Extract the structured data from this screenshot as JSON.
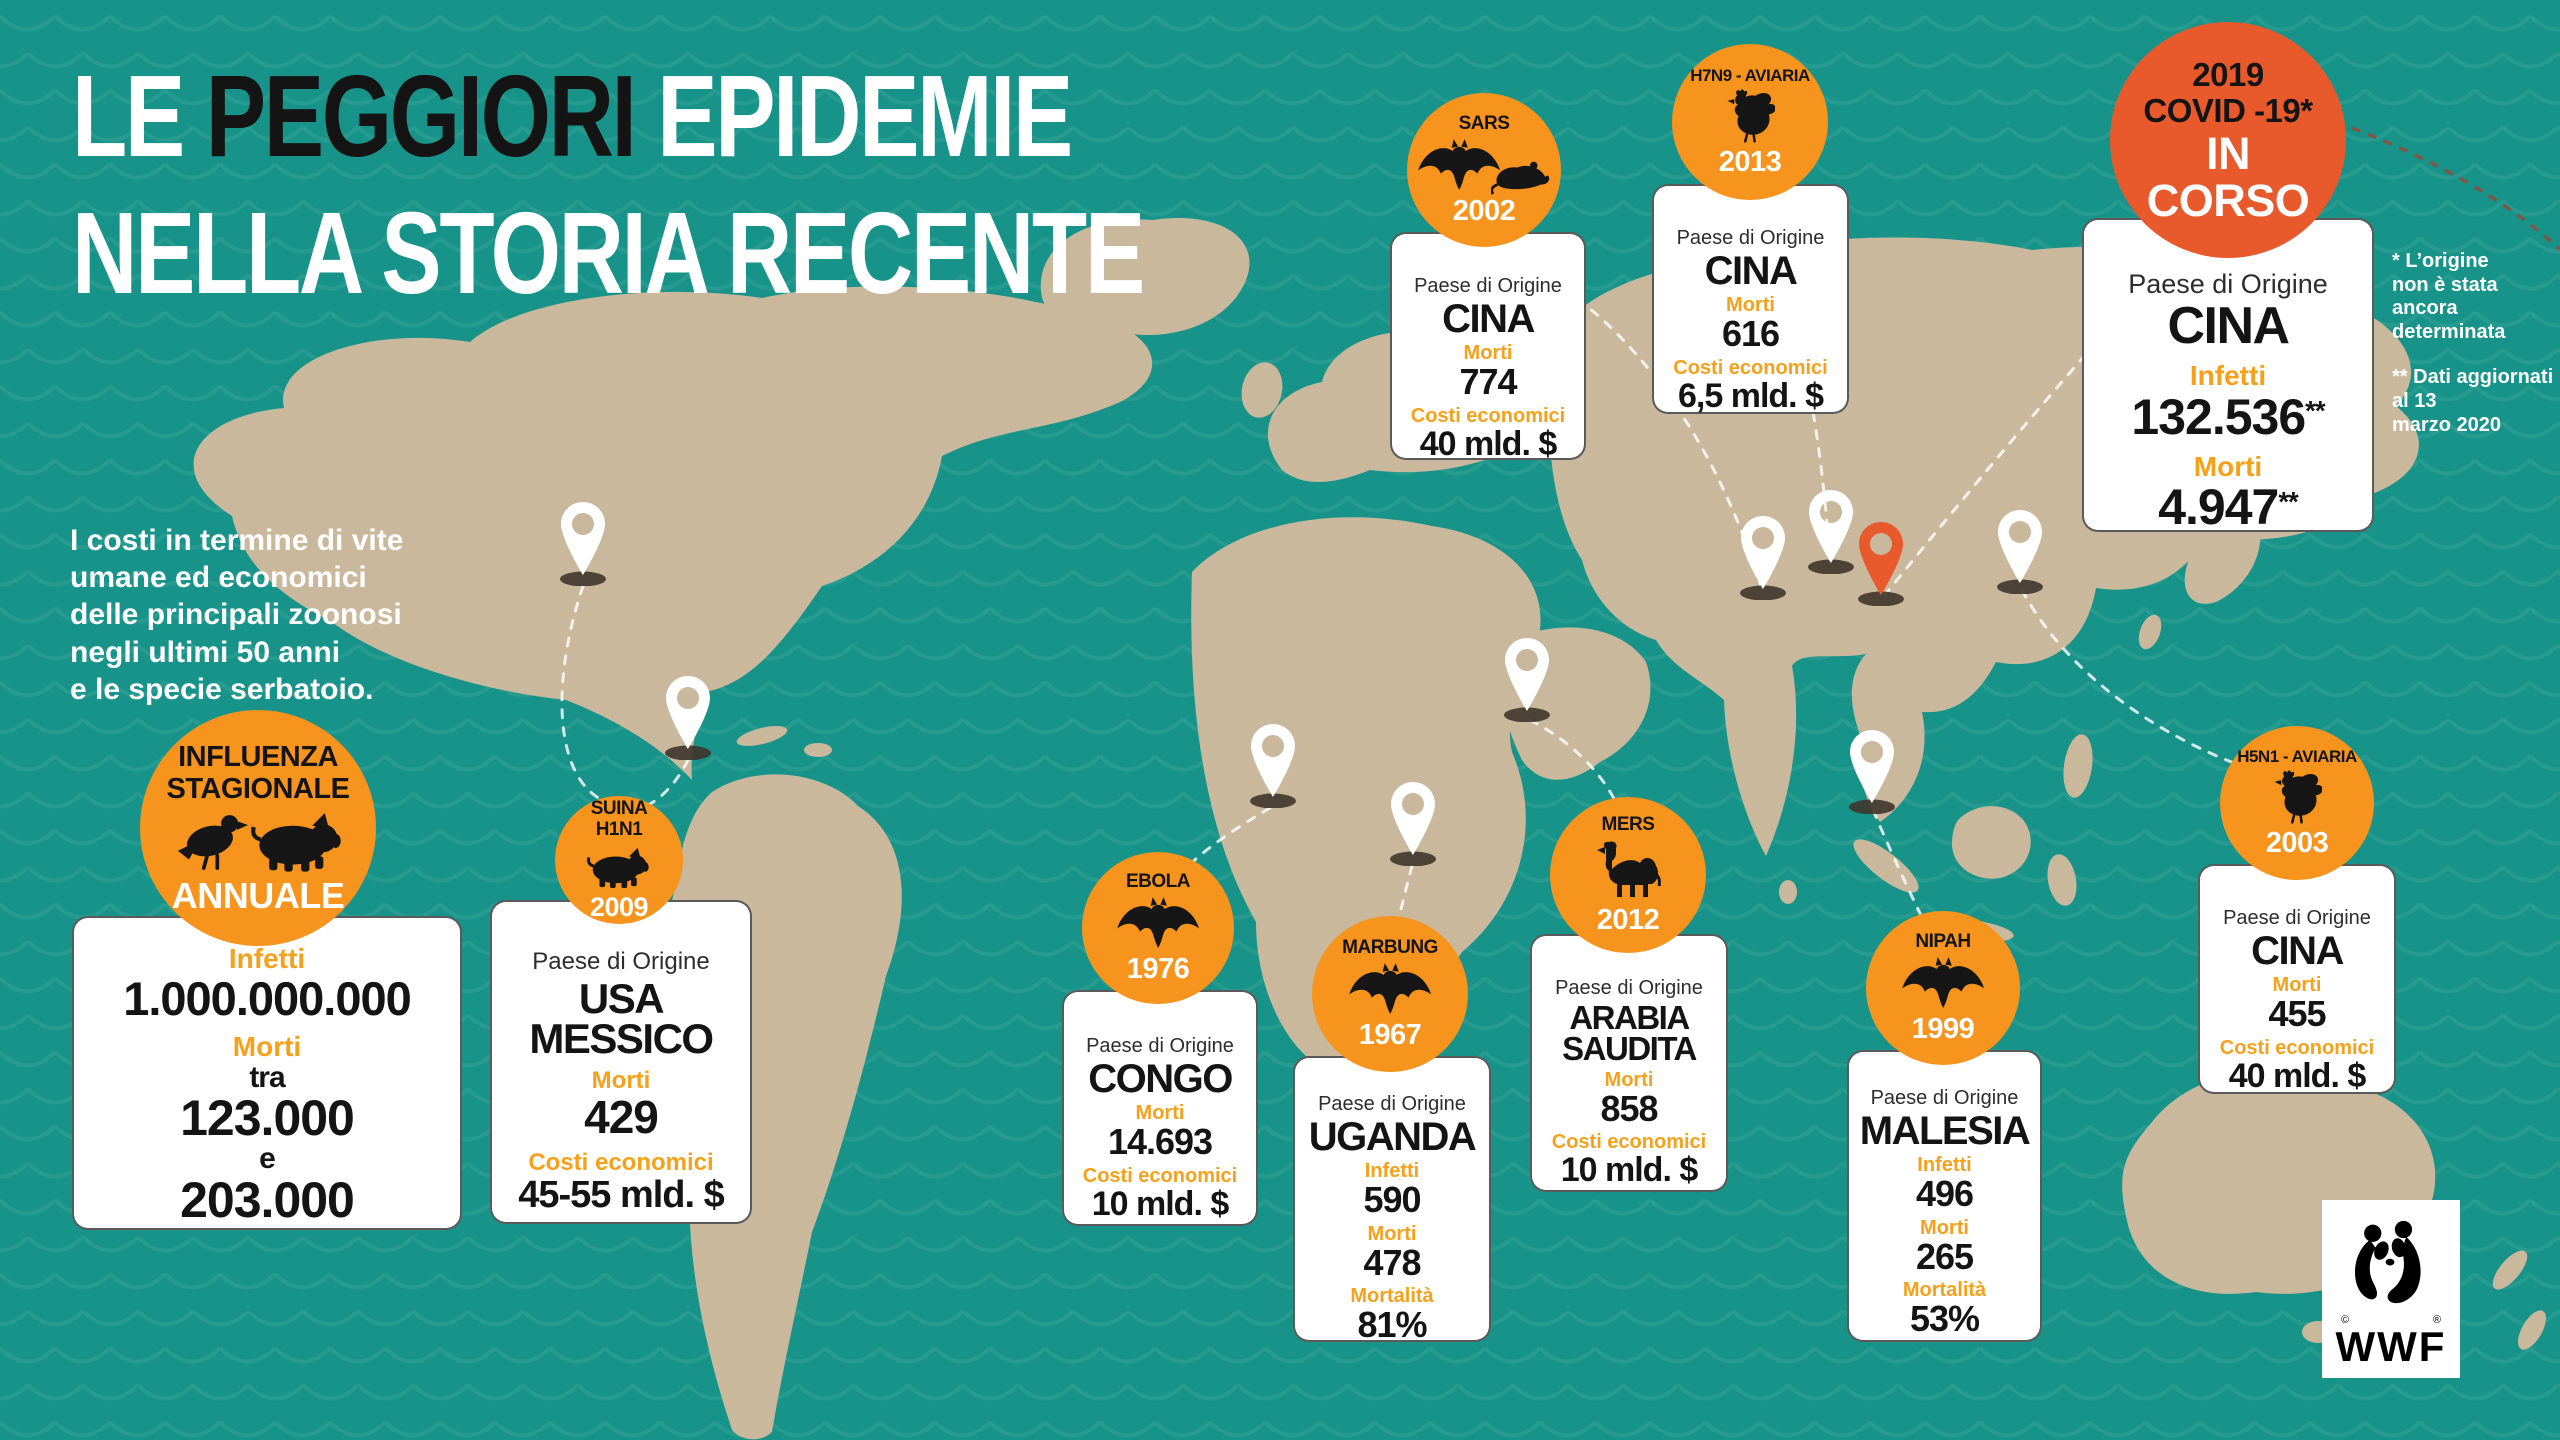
{
  "title": {
    "line1": [
      {
        "text": "LE ",
        "color": "#FFFFFF"
      },
      {
        "text": "PEGGIORI",
        "color": "#141414"
      },
      {
        "text": " EPIDEMIE",
        "color": "#FFFFFF"
      }
    ],
    "line2": "NELLA STORIA RECENTE"
  },
  "intro": "I costi in termine di vite\numane ed economici\ndelle principali zoonosi\nnegli ultimi 50 anni\ne le specie serbatoio.",
  "notes": {
    "note1": "* L’origine\nnon è stata ancora\ndeterminata",
    "note2": "** Dati aggiornati al 13\nmarzo 2020"
  },
  "logo": {
    "text": "WWF",
    "copyright": "©",
    "registered": "®"
  },
  "colors": {
    "background": "#17938A",
    "wave": "#3AA496",
    "land": "#C9B89C",
    "badge_orange": "#F6941D",
    "covid_orange": "#E8592B",
    "label_orange": "#F5A11C",
    "text_black": "#141414",
    "white": "#FFFFFF",
    "pin_shadow": "#3E352B"
  },
  "epidemics": [
    {
      "id": "influenza",
      "badge": {
        "top": [
          "INFLUENZA",
          "STAGIONALE"
        ],
        "animals": [
          "bird",
          "pig"
        ],
        "bottom": [
          "ANNUALE"
        ]
      },
      "rows": [
        {
          "label": "Infetti",
          "lines": [
            {
              "text": "1.000.000.000",
              "size": "xl"
            }
          ]
        },
        {
          "label": "Morti",
          "lines": [
            {
              "text": "tra",
              "size": "sm"
            },
            {
              "text": "123.000",
              "size": "lg"
            },
            {
              "text": "e",
              "size": "sm"
            },
            {
              "text": "203.000",
              "size": "lg"
            }
          ]
        }
      ]
    },
    {
      "id": "suina",
      "badge": {
        "top": [
          "SUINA",
          "H1N1"
        ],
        "animals": [
          "pig"
        ],
        "bottom": [
          "2009"
        ]
      },
      "origin": {
        "label": "Paese di Origine",
        "lines": [
          "USA",
          "MESSICO"
        ]
      },
      "rows": [
        {
          "label": "Morti",
          "lines": [
            {
              "text": "429",
              "size": "lg"
            }
          ]
        },
        {
          "label": "Costi economici",
          "lines": [
            {
              "text": "45-55 mld. $",
              "size": "md"
            }
          ]
        }
      ]
    },
    {
      "id": "sars",
      "badge": {
        "top": [
          "SARS"
        ],
        "animals": [
          "bat",
          "rat"
        ],
        "bottom": [
          "2002"
        ]
      },
      "origin": {
        "label": "Paese di Origine",
        "lines": [
          "CINA"
        ]
      },
      "rows": [
        {
          "label": "Morti",
          "lines": [
            {
              "text": "774",
              "size": "lg"
            }
          ]
        },
        {
          "label": "Costi economici",
          "lines": [
            {
              "text": "40 mld. $",
              "size": "md"
            }
          ]
        }
      ]
    },
    {
      "id": "h7n9",
      "badge": {
        "top": [
          "H7N9 - AVIARIA"
        ],
        "animals": [
          "rooster"
        ],
        "bottom": [
          "2013"
        ]
      },
      "origin": {
        "label": "Paese di Origine",
        "lines": [
          "CINA"
        ]
      },
      "rows": [
        {
          "label": "Morti",
          "lines": [
            {
              "text": "616",
              "size": "lg"
            }
          ]
        },
        {
          "label": "Costi economici",
          "lines": [
            {
              "text": "6,5 mld. $",
              "size": "md"
            }
          ]
        }
      ]
    },
    {
      "id": "covid",
      "badge": {
        "top": [
          "2019",
          "COVID -19*"
        ],
        "animals": [],
        "bottom": [
          "IN",
          "CORSO"
        ]
      },
      "origin": {
        "label": "Paese di Origine",
        "lines": [
          "CINA"
        ]
      },
      "rows": [
        {
          "label": "Infetti",
          "lines": [
            {
              "text": "132.536",
              "size": "lg"
            }
          ],
          "sup": "**"
        },
        {
          "label": "Morti",
          "lines": [
            {
              "text": "4.947",
              "size": "lg"
            }
          ],
          "sup": "**"
        }
      ]
    },
    {
      "id": "ebola",
      "badge": {
        "top": [
          "EBOLA"
        ],
        "animals": [
          "bat"
        ],
        "bottom": [
          "1976"
        ]
      },
      "origin": {
        "label": "Paese di Origine",
        "lines": [
          "CONGO"
        ]
      },
      "rows": [
        {
          "label": "Morti",
          "lines": [
            {
              "text": "14.693",
              "size": "lg"
            }
          ]
        },
        {
          "label": "Costi economici",
          "lines": [
            {
              "text": "10 mld. $",
              "size": "md"
            }
          ]
        }
      ]
    },
    {
      "id": "marbung",
      "badge": {
        "top": [
          "MARBUNG"
        ],
        "animals": [
          "bat"
        ],
        "bottom": [
          "1967"
        ]
      },
      "origin": {
        "label": "Paese di Origine",
        "lines": [
          "UGANDA"
        ]
      },
      "rows": [
        {
          "label": "Infetti",
          "lines": [
            {
              "text": "590",
              "size": "lg"
            }
          ]
        },
        {
          "label": "Morti",
          "lines": [
            {
              "text": "478",
              "size": "lg"
            }
          ]
        },
        {
          "label": "Mortalità",
          "lines": [
            {
              "text": "81%",
              "size": "lg"
            }
          ]
        }
      ]
    },
    {
      "id": "mers",
      "badge": {
        "top": [
          "MERS"
        ],
        "animals": [
          "camel"
        ],
        "bottom": [
          "2012"
        ]
      },
      "origin": {
        "label": "Paese di Origine",
        "lines": [
          "ARABIA",
          "SAUDITA"
        ]
      },
      "rows": [
        {
          "label": "Morti",
          "lines": [
            {
              "text": "858",
              "size": "lg"
            }
          ]
        },
        {
          "label": "Costi economici",
          "lines": [
            {
              "text": "10 mld. $",
              "size": "md"
            }
          ]
        }
      ]
    },
    {
      "id": "nipah",
      "badge": {
        "top": [
          "NIPAH"
        ],
        "animals": [
          "bat"
        ],
        "bottom": [
          "1999"
        ]
      },
      "origin": {
        "label": "Paese di Origine",
        "lines": [
          "MALESIA"
        ]
      },
      "rows": [
        {
          "label": "Infetti",
          "lines": [
            {
              "text": "496",
              "size": "lg"
            }
          ]
        },
        {
          "label": "Morti",
          "lines": [
            {
              "text": "265",
              "size": "lg"
            }
          ]
        },
        {
          "label": "Mortalità",
          "lines": [
            {
              "text": "53%",
              "size": "lg"
            }
          ]
        }
      ]
    },
    {
      "id": "h5n1",
      "badge": {
        "top": [
          "H5N1 - AVIARIA"
        ],
        "animals": [
          "rooster"
        ],
        "bottom": [
          "2003"
        ]
      },
      "origin": {
        "label": "Paese di Origine",
        "lines": [
          "CINA"
        ]
      },
      "rows": [
        {
          "label": "Morti",
          "lines": [
            {
              "text": "455",
              "size": "lg"
            }
          ]
        },
        {
          "label": "Costi economici",
          "lines": [
            {
              "text": "40 mld. $",
              "size": "md"
            }
          ]
        }
      ]
    }
  ],
  "pins": [
    {
      "id": "canada",
      "color": "#FFFFFF"
    },
    {
      "id": "mexico",
      "color": "#FFFFFF"
    },
    {
      "id": "west-africa",
      "color": "#FFFFFF"
    },
    {
      "id": "central-africa",
      "color": "#FFFFFF"
    },
    {
      "id": "saudi-arabia",
      "color": "#FFFFFF"
    },
    {
      "id": "central-asia-1",
      "color": "#FFFFFF"
    },
    {
      "id": "central-asia-2",
      "color": "#FFFFFF"
    },
    {
      "id": "china-covid",
      "color": "#E8592B"
    },
    {
      "id": "east-asia",
      "color": "#FFFFFF"
    },
    {
      "id": "malaysia",
      "color": "#FFFFFF"
    }
  ]
}
